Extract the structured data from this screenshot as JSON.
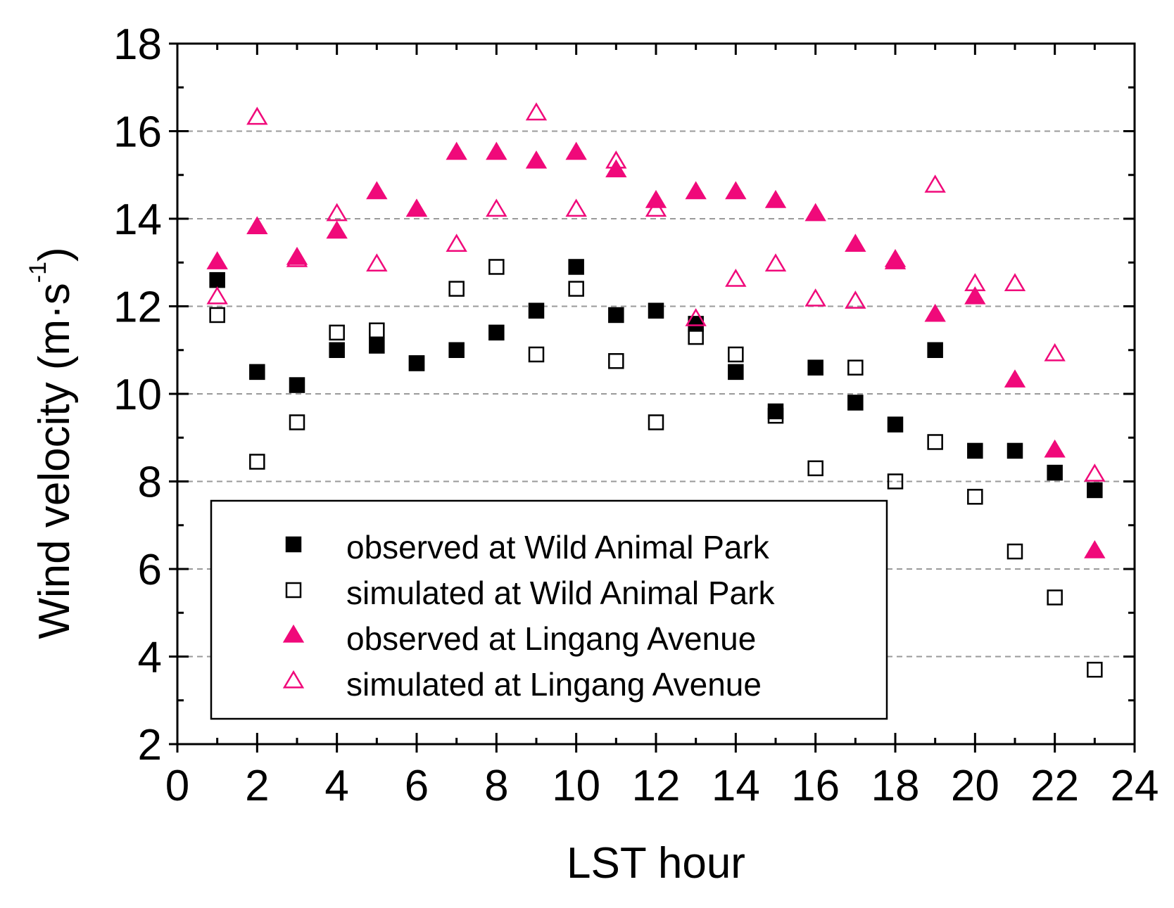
{
  "chart_data": {
    "type": "scatter",
    "title": "",
    "xlabel": "LST hour",
    "ylabel_main": "Wind velocity (m·s",
    "ylabel_sup": "-1",
    "ylabel_close": ")",
    "xlim": [
      0,
      24
    ],
    "ylim": [
      2,
      18
    ],
    "xticks": [
      0,
      2,
      4,
      6,
      8,
      10,
      12,
      14,
      16,
      18,
      20,
      22,
      24
    ],
    "yticks": [
      2,
      4,
      6,
      8,
      10,
      12,
      14,
      16,
      18
    ],
    "grid": "horizontal dashed at major y ticks",
    "legend_position": "lower-left",
    "series": [
      {
        "name": "observed at Wild Animal Park",
        "marker": "square-filled",
        "color": "#000000",
        "x": [
          1,
          2,
          3,
          4,
          5,
          6,
          7,
          8,
          9,
          10,
          11,
          12,
          13,
          14,
          15,
          16,
          17,
          18,
          19,
          20,
          21,
          22,
          23
        ],
        "values": [
          12.6,
          10.5,
          10.2,
          11.0,
          11.1,
          10.7,
          11.0,
          11.4,
          11.9,
          12.9,
          11.8,
          11.9,
          11.6,
          10.5,
          9.6,
          10.6,
          9.8,
          9.3,
          11.0,
          8.7,
          8.7,
          8.2,
          7.8
        ]
      },
      {
        "name": "simulated at Wild Animal Park",
        "marker": "square-open",
        "color": "#000000",
        "x": [
          1,
          2,
          3,
          4,
          5,
          6,
          7,
          8,
          9,
          10,
          11,
          12,
          13,
          14,
          15,
          16,
          17,
          18,
          19,
          20,
          21,
          22,
          23
        ],
        "values": [
          11.8,
          8.45,
          9.35,
          11.4,
          11.45,
          10.7,
          12.4,
          12.9,
          10.9,
          12.4,
          10.75,
          9.35,
          11.3,
          10.9,
          9.5,
          8.3,
          10.6,
          8.0,
          8.9,
          7.65,
          6.4,
          5.35,
          3.7
        ]
      },
      {
        "name": "observed at Lingang Avenue",
        "marker": "triangle-filled",
        "color": "#F0097A",
        "x": [
          1,
          2,
          3,
          4,
          5,
          6,
          7,
          8,
          9,
          10,
          11,
          12,
          13,
          14,
          15,
          16,
          17,
          18,
          19,
          20,
          21,
          22,
          23
        ],
        "values": [
          13.0,
          13.8,
          13.1,
          13.7,
          14.6,
          14.2,
          15.5,
          15.5,
          15.3,
          15.5,
          15.1,
          14.4,
          14.6,
          14.6,
          14.4,
          14.1,
          13.4,
          13.0,
          11.8,
          12.2,
          10.3,
          8.7,
          6.4
        ]
      },
      {
        "name": "simulated at Lingang Avenue",
        "marker": "triangle-open",
        "color": "#F0097A",
        "x": [
          1,
          2,
          3,
          4,
          5,
          6,
          7,
          8,
          9,
          10,
          11,
          12,
          13,
          14,
          15,
          16,
          17,
          18,
          19,
          20,
          21,
          22,
          23
        ],
        "values": [
          12.2,
          16.3,
          13.05,
          14.1,
          12.95,
          14.2,
          13.4,
          14.2,
          16.4,
          14.2,
          15.3,
          14.2,
          11.7,
          12.6,
          12.95,
          12.15,
          12.1,
          13.05,
          14.75,
          12.5,
          12.5,
          10.9,
          8.15
        ]
      }
    ]
  }
}
